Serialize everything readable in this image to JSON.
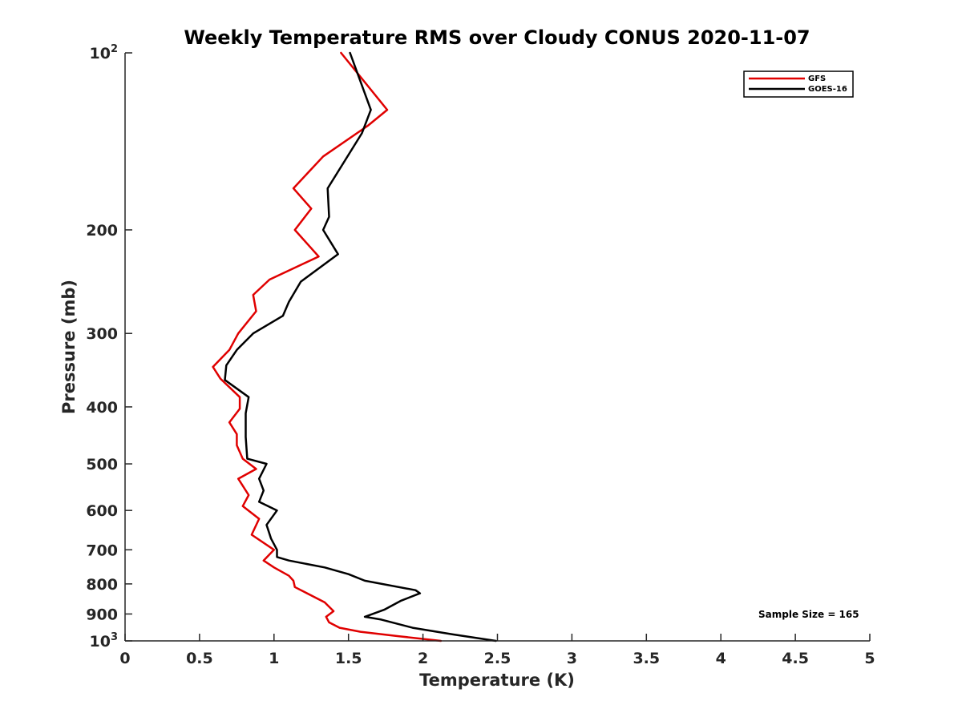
{
  "chart_data": {
    "type": "line",
    "title": "Weekly Temperature RMS over Cloudy CONUS 2020-11-07",
    "xlabel": "Temperature (K)",
    "ylabel": "Pressure (mb)",
    "xlim": [
      0,
      5
    ],
    "ylim": [
      100,
      1000
    ],
    "yscale": "log",
    "y_reversed": true,
    "x_ticks": [
      0,
      0.5,
      1,
      1.5,
      2,
      2.5,
      3,
      3.5,
      4,
      4.5,
      5
    ],
    "x_tick_labels": [
      "0",
      "0.5",
      "1",
      "1.5",
      "2",
      "2.5",
      "3",
      "3.5",
      "4",
      "4.5",
      "5"
    ],
    "y_ticks": [
      {
        "value": 100,
        "base": "10",
        "exp": "2"
      },
      {
        "value": 200,
        "label": "200"
      },
      {
        "value": 300,
        "label": "300"
      },
      {
        "value": 400,
        "label": "400"
      },
      {
        "value": 500,
        "label": "500"
      },
      {
        "value": 600,
        "label": "600"
      },
      {
        "value": 700,
        "label": "700"
      },
      {
        "value": 800,
        "label": "800"
      },
      {
        "value": 900,
        "label": "900"
      },
      {
        "value": 1000,
        "base": "10",
        "exp": "3"
      }
    ],
    "grid": false,
    "legend_position": "top-right",
    "annotation": "Sample Size = 165",
    "series": [
      {
        "name": "GFS",
        "color": "#e00000",
        "points": [
          [
            1.45,
            100
          ],
          [
            1.76,
            125
          ],
          [
            1.63,
            133
          ],
          [
            1.33,
            150
          ],
          [
            1.13,
            170
          ],
          [
            1.25,
            184
          ],
          [
            1.14,
            200
          ],
          [
            1.3,
            222
          ],
          [
            0.97,
            243
          ],
          [
            0.86,
            258
          ],
          [
            0.88,
            275
          ],
          [
            0.76,
            300
          ],
          [
            0.7,
            320
          ],
          [
            0.59,
            342
          ],
          [
            0.64,
            358
          ],
          [
            0.77,
            385
          ],
          [
            0.77,
            403
          ],
          [
            0.7,
            425
          ],
          [
            0.75,
            445
          ],
          [
            0.75,
            465
          ],
          [
            0.79,
            490
          ],
          [
            0.88,
            510
          ],
          [
            0.76,
            530
          ],
          [
            0.83,
            565
          ],
          [
            0.79,
            590
          ],
          [
            0.9,
            620
          ],
          [
            0.85,
            660
          ],
          [
            1.0,
            700
          ],
          [
            0.93,
            730
          ],
          [
            1.0,
            750
          ],
          [
            1.1,
            775
          ],
          [
            1.13,
            790
          ],
          [
            1.14,
            810
          ],
          [
            1.34,
            860
          ],
          [
            1.4,
            890
          ],
          [
            1.35,
            910
          ],
          [
            1.37,
            930
          ],
          [
            1.44,
            950
          ],
          [
            1.58,
            965
          ],
          [
            1.84,
            982
          ],
          [
            2.12,
            1000
          ]
        ]
      },
      {
        "name": "GOES-16",
        "color": "#000000",
        "points": [
          [
            1.51,
            100
          ],
          [
            1.65,
            125
          ],
          [
            1.59,
            137
          ],
          [
            1.36,
            170
          ],
          [
            1.37,
            190
          ],
          [
            1.33,
            200
          ],
          [
            1.43,
            220
          ],
          [
            1.18,
            245
          ],
          [
            1.1,
            265
          ],
          [
            1.06,
            280
          ],
          [
            0.86,
            300
          ],
          [
            0.75,
            320
          ],
          [
            0.68,
            340
          ],
          [
            0.67,
            360
          ],
          [
            0.83,
            385
          ],
          [
            0.81,
            410
          ],
          [
            0.81,
            450
          ],
          [
            0.82,
            490
          ],
          [
            0.95,
            500
          ],
          [
            0.9,
            530
          ],
          [
            0.93,
            555
          ],
          [
            0.9,
            580
          ],
          [
            1.02,
            600
          ],
          [
            0.95,
            635
          ],
          [
            0.98,
            670
          ],
          [
            1.02,
            700
          ],
          [
            1.02,
            720
          ],
          [
            1.1,
            730
          ],
          [
            1.34,
            750
          ],
          [
            1.5,
            770
          ],
          [
            1.61,
            790
          ],
          [
            1.95,
            820
          ],
          [
            1.98,
            830
          ],
          [
            1.85,
            855
          ],
          [
            1.74,
            885
          ],
          [
            1.61,
            910
          ],
          [
            1.72,
            920
          ],
          [
            1.93,
            950
          ],
          [
            2.2,
            975
          ],
          [
            2.49,
            1000
          ]
        ]
      }
    ]
  }
}
